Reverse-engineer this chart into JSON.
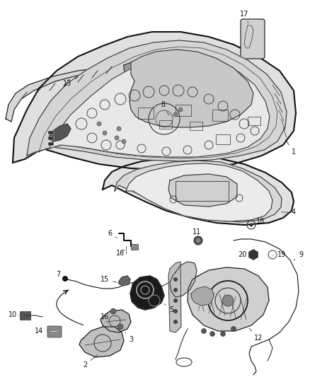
{
  "bg_color": "#ffffff",
  "lc": "#333333",
  "lc_dark": "#111111",
  "figsize": [
    4.38,
    5.33
  ],
  "dpi": 100
}
